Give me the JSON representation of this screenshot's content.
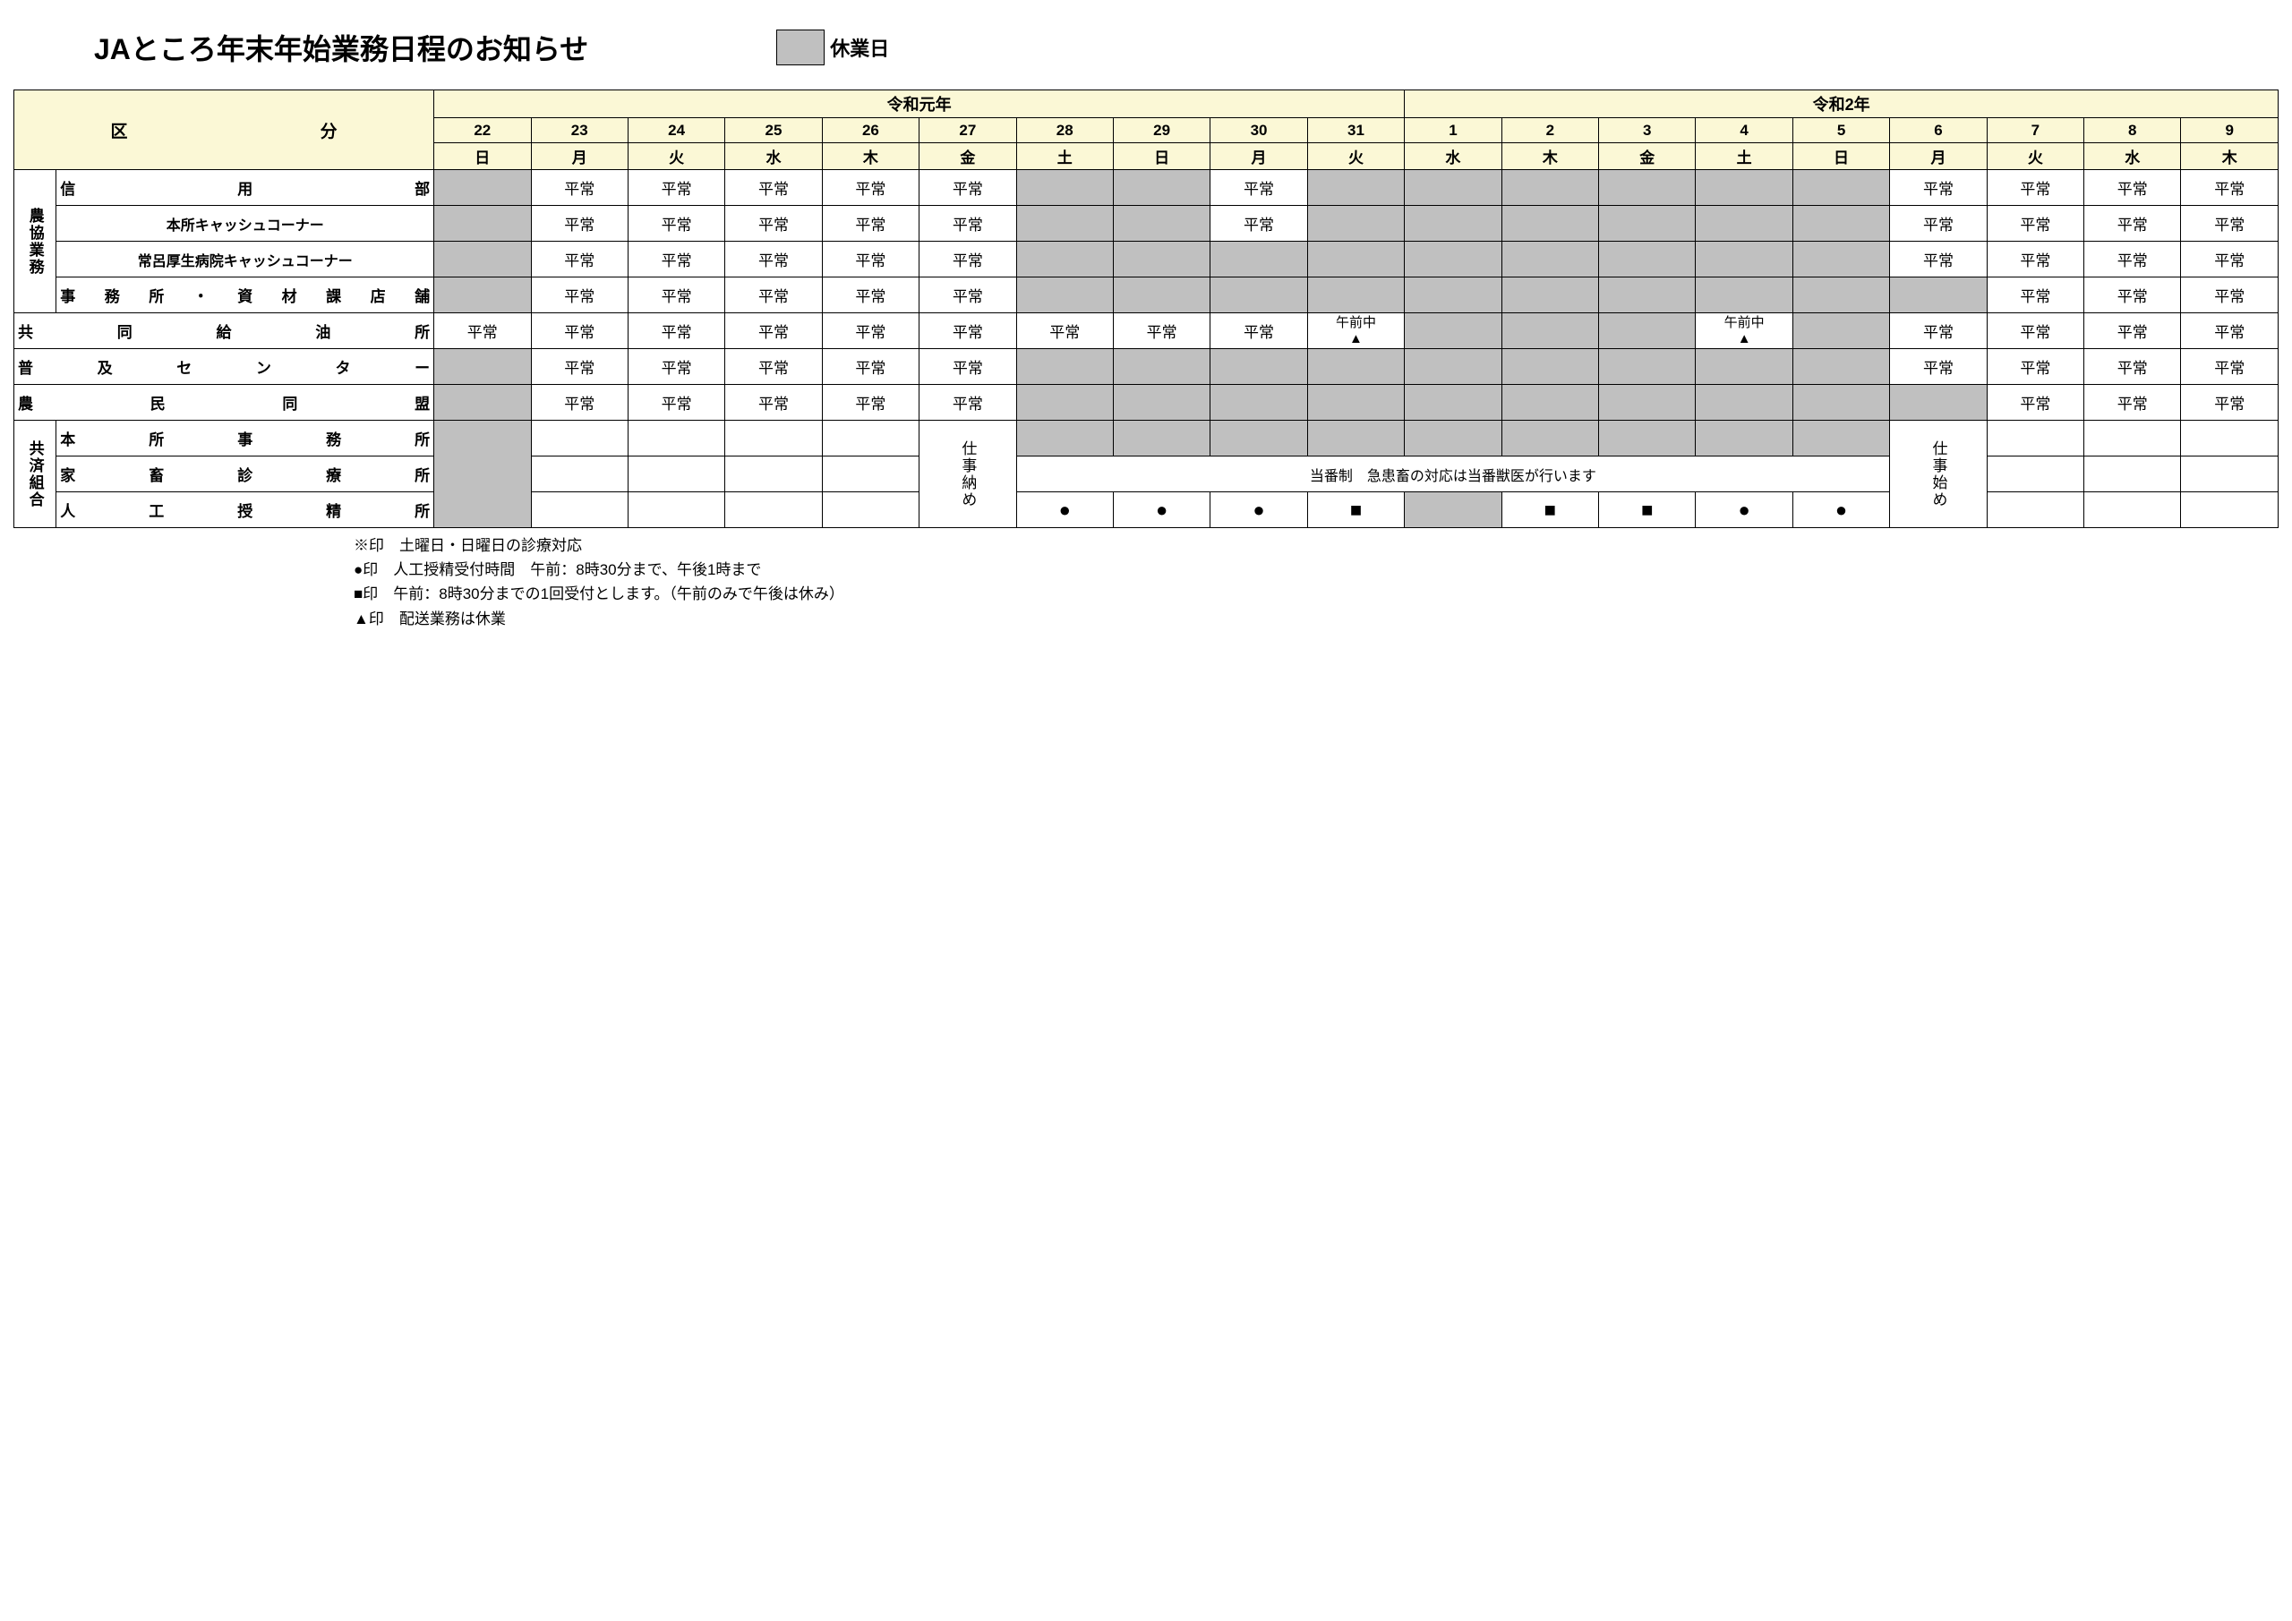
{
  "colors": {
    "header_bg": "#fbf8d6",
    "closed_bg": "#c0c0c0",
    "border": "#000000",
    "page_bg": "#ffffff",
    "text": "#000000"
  },
  "title": "JAところ年末年始業務日程のお知らせ",
  "legend_label": "休業日",
  "years": {
    "y1": "令和元年",
    "y2": "令和2年"
  },
  "category_header_left": "区",
  "category_header_right": "分",
  "dates": [
    "22",
    "23",
    "24",
    "25",
    "26",
    "27",
    "28",
    "29",
    "30",
    "31",
    "1",
    "2",
    "3",
    "4",
    "5",
    "6",
    "7",
    "8",
    "9"
  ],
  "dows": [
    "日",
    "月",
    "火",
    "水",
    "木",
    "金",
    "土",
    "日",
    "月",
    "火",
    "水",
    "木",
    "金",
    "土",
    "日",
    "月",
    "火",
    "水",
    "木"
  ],
  "groups": {
    "g1": "農協業務",
    "g2": "共済組合"
  },
  "row_labels": {
    "r1": "信用部",
    "r2": "本所キャッシュコーナー",
    "r3": "常呂厚生病院キャッシュコーナー",
    "r4": "事務所・資材課店舗",
    "r5": "共同給油所",
    "r6": "普及センター",
    "r7": "農民同盟",
    "r8": "本所事務所",
    "r9": "家畜診療所",
    "r10": "人工授精所"
  },
  "values": {
    "normal": "平常",
    "am_tri": "午前中\n▲",
    "shigoto_osame": "仕事納め",
    "shigoto_hajime": "仕事始め",
    "duty_note": "当番制　急患畜の対応は当番獣医が行います",
    "circle": "●",
    "square": "■"
  },
  "footnotes": {
    "l1": "※印　土曜日・日曜日の診療対応",
    "l2": "●印　人工授精受付時間　午前：8時30分まで、午後1時まで",
    "l3": "■印　午前：8時30分までの1回受付とします。（午前のみで午後は休み）",
    "l4": "▲印　配送業務は休業"
  },
  "table": {
    "r1": {
      "c": [
        "x",
        "n",
        "n",
        "n",
        "n",
        "n",
        "x",
        "x",
        "n",
        "x",
        "x",
        "x",
        "x",
        "x",
        "x",
        "n",
        "n",
        "n",
        "n"
      ]
    },
    "r2": {
      "c": [
        "x",
        "n",
        "n",
        "n",
        "n",
        "n",
        "x",
        "x",
        "n",
        "x",
        "x",
        "x",
        "x",
        "x",
        "x",
        "n",
        "n",
        "n",
        "n"
      ]
    },
    "r3": {
      "c": [
        "x",
        "n",
        "n",
        "n",
        "n",
        "n",
        "x",
        "x",
        "x",
        "x",
        "x",
        "x",
        "x",
        "x",
        "x",
        "n",
        "n",
        "n",
        "n"
      ]
    },
    "r4": {
      "c": [
        "x",
        "n",
        "n",
        "n",
        "n",
        "n",
        "x",
        "x",
        "x",
        "x",
        "x",
        "x",
        "x",
        "x",
        "x",
        "x",
        "n",
        "n",
        "n"
      ]
    },
    "r5": {
      "c": [
        "n",
        "n",
        "n",
        "n",
        "n",
        "n",
        "n",
        "n",
        "n",
        "at",
        "x",
        "x",
        "x",
        "at",
        "x",
        "n",
        "n",
        "n",
        "n"
      ]
    },
    "r6": {
      "c": [
        "x",
        "n",
        "n",
        "n",
        "n",
        "n",
        "x",
        "x",
        "x",
        "x",
        "x",
        "x",
        "x",
        "x",
        "x",
        "n",
        "n",
        "n",
        "n"
      ]
    },
    "r7": {
      "c": [
        "x",
        "n",
        "n",
        "n",
        "n",
        "n",
        "x",
        "x",
        "x",
        "x",
        "x",
        "x",
        "x",
        "x",
        "x",
        "x",
        "n",
        "n",
        "n"
      ]
    }
  }
}
